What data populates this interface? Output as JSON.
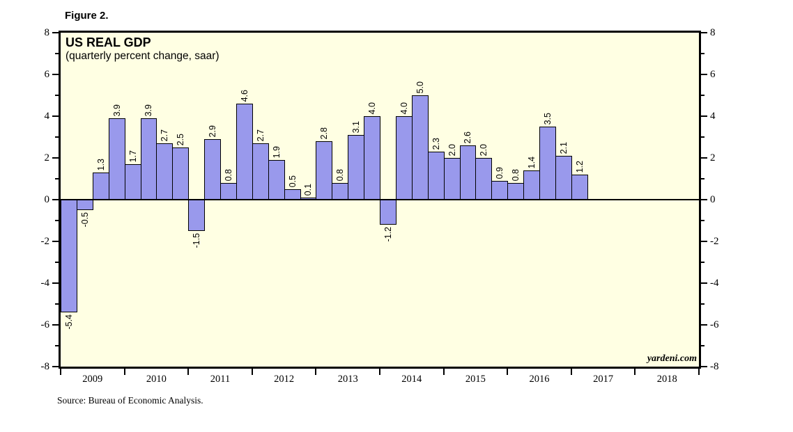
{
  "figure_label": "Figure 2.",
  "header": {
    "title": "US REAL GDP",
    "subtitle": "(quarterly percent change, saar)"
  },
  "watermark": "yardeni.com",
  "source_note": "Source: Bureau of Economic Analysis.",
  "colors": {
    "bar_fill": "#9999EC",
    "bar_border": "#000000",
    "plot_background": "#FFFFE3",
    "frame_border": "#000000",
    "text": "#000000"
  },
  "y_axis": {
    "min": -8,
    "max": 8,
    "major_step": 2,
    "minor_step": 1,
    "tick_labels": [
      "8",
      "6",
      "4",
      "2",
      "0",
      "-2",
      "-4",
      "-6",
      "-8"
    ],
    "sides": [
      "left",
      "right"
    ]
  },
  "x_axis": {
    "range_start_year": 2009,
    "range_end_year": 2019,
    "year_labels": [
      "2009",
      "2010",
      "2011",
      "2012",
      "2013",
      "2014",
      "2015",
      "2016",
      "2017",
      "2018"
    ]
  },
  "chart_data": {
    "type": "bar",
    "title": "US REAL GDP",
    "subtitle": "(quarterly percent change, saar)",
    "xlabel": "",
    "ylabel": "",
    "ylim": [
      -8,
      8
    ],
    "grid": false,
    "legend_position": "none",
    "categories": [
      "2009-Q1",
      "2009-Q2",
      "2009-Q3",
      "2009-Q4",
      "2010-Q1",
      "2010-Q2",
      "2010-Q3",
      "2010-Q4",
      "2011-Q1",
      "2011-Q2",
      "2011-Q3",
      "2011-Q4",
      "2012-Q1",
      "2012-Q2",
      "2012-Q3",
      "2012-Q4",
      "2013-Q1",
      "2013-Q2",
      "2013-Q3",
      "2013-Q4",
      "2014-Q1",
      "2014-Q2",
      "2014-Q3",
      "2014-Q4",
      "2015-Q1",
      "2015-Q2",
      "2015-Q3",
      "2015-Q4",
      "2016-Q1",
      "2016-Q2",
      "2016-Q3",
      "2016-Q4",
      "2017-Q1"
    ],
    "values": [
      -5.4,
      -0.5,
      1.3,
      3.9,
      1.7,
      3.9,
      2.7,
      2.5,
      -1.5,
      2.9,
      0.8,
      4.6,
      2.7,
      1.9,
      0.5,
      0.1,
      2.8,
      0.8,
      3.1,
      4.0,
      -1.2,
      4.0,
      5.0,
      2.3,
      2.0,
      2.6,
      2.0,
      0.9,
      0.8,
      1.4,
      3.5,
      2.1,
      1.2
    ],
    "bar_labels": [
      "-5.4",
      "-0.5",
      "1.3",
      "3.9",
      "1.7",
      "3.9",
      "2.7",
      "2.5",
      "-1.5",
      "2.9",
      "0.8",
      "4.6",
      "2.7",
      "1.9",
      "0.5",
      "0.1",
      "2.8",
      "0.8",
      "3.1",
      "4.0",
      "-1.2",
      "4.0",
      "5.0",
      "2.3",
      "2.0",
      "2.6",
      "2.0",
      "0.9",
      "0.8",
      "1.4",
      "3.5",
      "2.1",
      "1.2"
    ]
  }
}
